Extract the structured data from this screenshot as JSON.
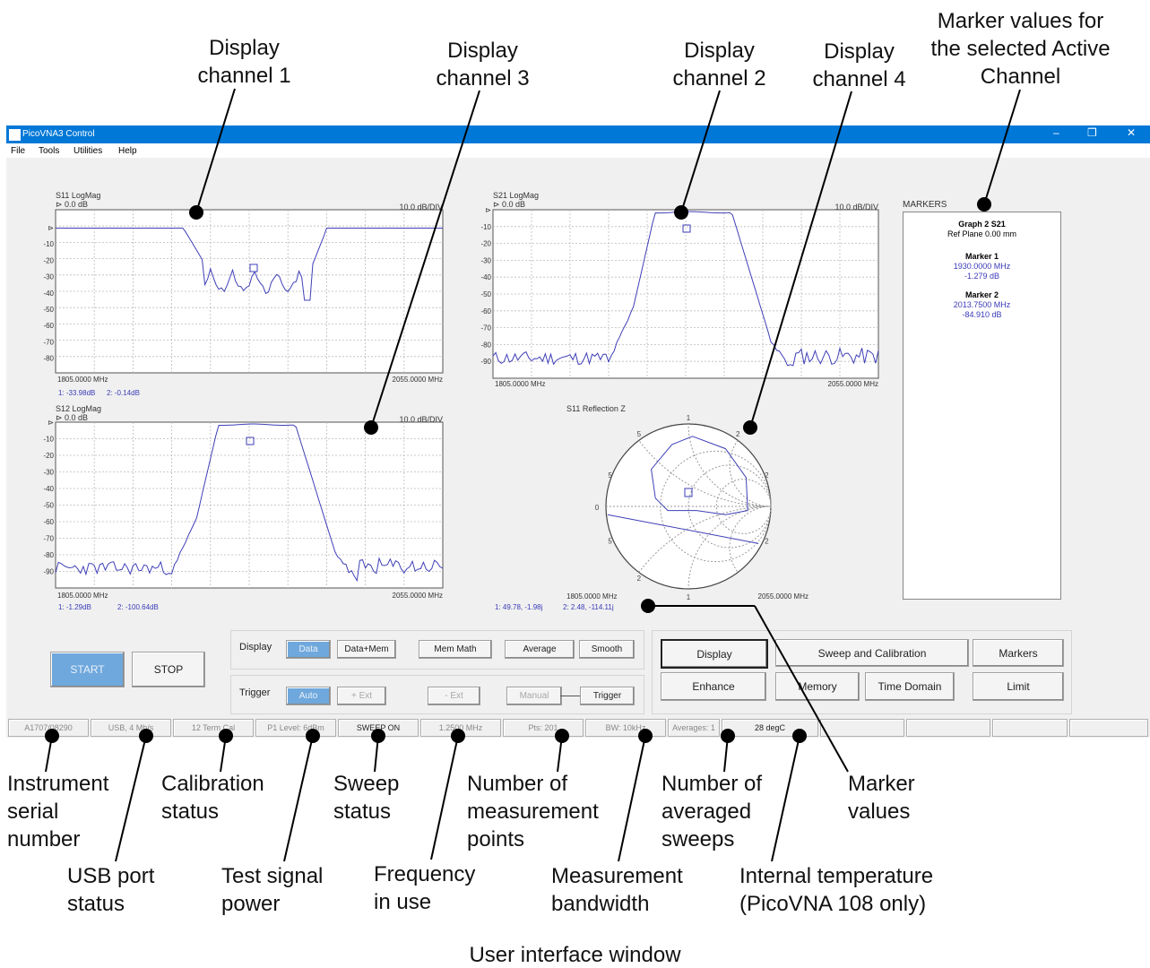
{
  "window": {
    "title": "PicoVNA3 Control",
    "menu": [
      "File",
      "Tools",
      "Utilities",
      "Help"
    ]
  },
  "graphs": {
    "ch1": {
      "title": "S11 LogMag",
      "ref": "⊳ 0.0 dB",
      "scale": "10.0 dB/DIV",
      "yticks": [
        "⊳",
        "-10",
        "-20",
        "-30",
        "-40",
        "-50",
        "-60",
        "-70",
        "-80"
      ],
      "xstart": "1805.0000 MHz",
      "xend": "2055.0000 MHz",
      "markers_readout": [
        "1: -33.98dB",
        "2: -0.14dB"
      ]
    },
    "ch2": {
      "title": "S21 LogMag",
      "ref": "⊳ 0.0 dB",
      "scale": "10.0 dB/DIV",
      "yticks": [
        "⊳",
        "-10",
        "-20",
        "-30",
        "-40",
        "-50",
        "-60",
        "-70",
        "-80",
        "-90"
      ],
      "xstart": "1805.0000 MHz",
      "xend": "2055.0000 MHz"
    },
    "ch3": {
      "title": "S12 LogMag",
      "ref": "⊳ 0.0 dB",
      "scale": "10.0 dB/DIV",
      "yticks": [
        "⊳",
        "-10",
        "-20",
        "-30",
        "-40",
        "-50",
        "-60",
        "-70",
        "-80",
        "-90"
      ],
      "xstart": "1805.0000 MHz",
      "xend": "2055.0000 MHz",
      "markers_readout": [
        "1: -1.29dB",
        "2: -100.64dB"
      ]
    },
    "ch4": {
      "title": "S11 Reflection Z",
      "xstart": "1805.0000 MHz",
      "xend": "2055.0000 MHz",
      "markers_readout": [
        "1: 49.78, -1.98j",
        "2: 2.48, -114.11j"
      ],
      "labels": [
        "1",
        "2",
        "5",
        "2",
        "5",
        "0",
        "2",
        "5",
        "1",
        "2"
      ]
    }
  },
  "markers_panel": {
    "title": "MARKERS",
    "graph": "Graph 2 S21",
    "ref_plane": "Ref Plane 0.00 mm",
    "m1_label": "Marker 1",
    "m1_freq": "1930.0000 MHz",
    "m1_val": "-1.279 dB",
    "m2_label": "Marker 2",
    "m2_freq": "2013.7500 MHz",
    "m2_val": "-84.910 dB"
  },
  "controls": {
    "start": "START",
    "stop": "STOP",
    "display_label": "Display",
    "display_btns": [
      "Data",
      "Data+Mem",
      "Mem Math",
      "Average",
      "Smooth"
    ],
    "trigger_label": "Trigger",
    "trigger_btns": [
      "Auto",
      "+ Ext",
      "- Ext",
      "Manual",
      "Trigger"
    ],
    "right_btns": [
      "Display",
      "Sweep and Calibration",
      "Markers",
      "Enhance",
      "Memory",
      "Time Domain",
      "Limit"
    ]
  },
  "status": [
    "A1707/08290",
    "USB, 4 Mb/s",
    "12 Term Cal",
    "P1 Level: 6dBm",
    "SWEEP ON",
    "1.2500 MHz",
    "Pts: 201",
    "BW: 10kHz",
    "Averages: 1",
    "28 degC"
  ],
  "callouts": {
    "ch1": "Display channel 1",
    "ch3": "Display channel 3",
    "ch2": "Display channel 2",
    "ch4": "Display channel 4",
    "markers": "Marker values for the selected Active Channel",
    "serial": "Instrument serial number",
    "usb": "USB port status",
    "cal": "Calibration status",
    "power": "Test signal power",
    "sweep": "Sweep status",
    "freq": "Frequency in use",
    "points": "Number of measurement points",
    "bw": "Measurement bandwidth",
    "avg": "Number of averaged sweeps",
    "temp": "Internal temperature (PicoVNA 108 only)",
    "mvalues": "Marker values"
  },
  "caption": "User interface window"
}
